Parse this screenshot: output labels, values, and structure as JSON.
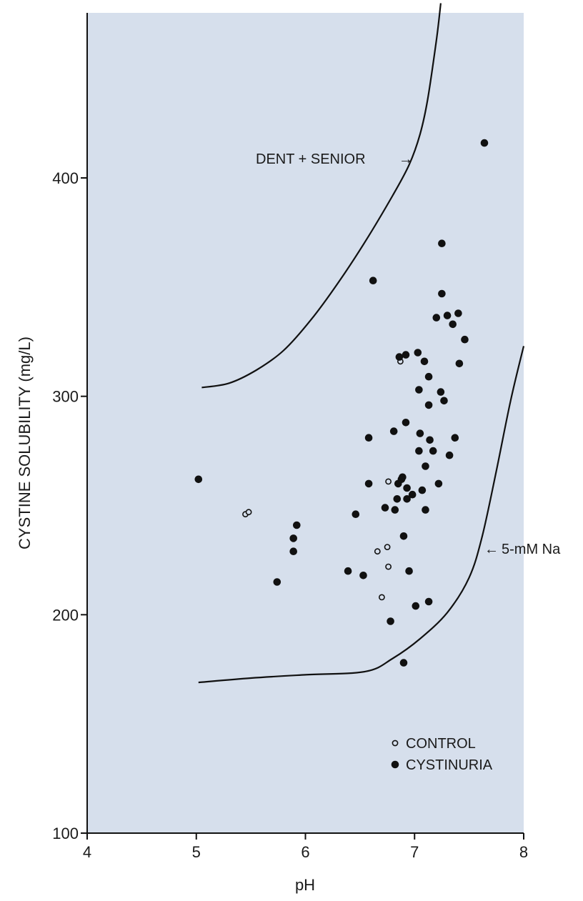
{
  "chart_data": {
    "type": "scatter",
    "title": "",
    "xlabel": "pH",
    "ylabel": "CYSTINE SOLUBILITY (mg/L)",
    "xlim": [
      4,
      8
    ],
    "ylim": [
      100,
      480
    ],
    "x_ticks": [
      4,
      5,
      6,
      7,
      8
    ],
    "y_ticks": [
      100,
      200,
      300,
      400
    ],
    "x_tick_labels": [
      "4",
      "5",
      "6",
      "7",
      "8"
    ],
    "y_tick_labels": [
      "100",
      "200",
      "300",
      "400"
    ],
    "grid": false,
    "plot_background": "#d6dfec",
    "legend": {
      "placement": "bottom-right",
      "entries": [
        {
          "label": "CONTROL",
          "marker": "open-circle"
        },
        {
          "label": "CYSTINURIA",
          "marker": "filled-circle"
        }
      ]
    },
    "curves": [
      {
        "label": "DENT + SENIOR",
        "points": [
          [
            5.05,
            304
          ],
          [
            5.3,
            306
          ],
          [
            5.55,
            312
          ],
          [
            5.8,
            321
          ],
          [
            6.05,
            335
          ],
          [
            6.3,
            352
          ],
          [
            6.55,
            371
          ],
          [
            6.8,
            392
          ],
          [
            6.95,
            406
          ],
          [
            7.05,
            420
          ],
          [
            7.12,
            436
          ],
          [
            7.2,
            463
          ],
          [
            7.24,
            480
          ]
        ]
      },
      {
        "label": "5-mM Na",
        "points": [
          [
            5.02,
            169
          ],
          [
            5.5,
            171
          ],
          [
            6.0,
            172.5
          ],
          [
            6.55,
            174
          ],
          [
            6.8,
            180
          ],
          [
            7.05,
            189
          ],
          [
            7.3,
            201
          ],
          [
            7.5,
            217
          ],
          [
            7.62,
            236
          ],
          [
            7.75,
            266
          ],
          [
            7.88,
            298
          ],
          [
            8.0,
            323
          ]
        ]
      }
    ],
    "series": [
      {
        "name": "CONTROL",
        "marker": "open",
        "points": [
          [
            6.87,
            316
          ],
          [
            5.45,
            246
          ],
          [
            5.48,
            247
          ],
          [
            6.76,
            261
          ],
          [
            6.66,
            229
          ],
          [
            6.75,
            231
          ],
          [
            6.76,
            222
          ],
          [
            6.7,
            208
          ]
        ]
      },
      {
        "name": "CYSTINURIA",
        "marker": "filled",
        "points": [
          [
            5.02,
            262
          ],
          [
            5.74,
            215
          ],
          [
            5.89,
            229
          ],
          [
            5.89,
            235
          ],
          [
            5.92,
            241
          ],
          [
            6.39,
            220
          ],
          [
            6.46,
            246
          ],
          [
            6.53,
            218
          ],
          [
            6.58,
            281
          ],
          [
            6.58,
            260
          ],
          [
            6.62,
            353
          ],
          [
            6.73,
            249
          ],
          [
            6.78,
            197
          ],
          [
            6.81,
            284
          ],
          [
            6.82,
            248
          ],
          [
            6.84,
            253
          ],
          [
            6.85,
            260
          ],
          [
            6.86,
            318
          ],
          [
            6.88,
            262
          ],
          [
            6.89,
            263
          ],
          [
            6.9,
            236
          ],
          [
            6.9,
            178
          ],
          [
            6.92,
            319
          ],
          [
            6.92,
            288
          ],
          [
            6.93,
            253
          ],
          [
            6.93,
            258
          ],
          [
            6.95,
            220
          ],
          [
            6.98,
            255
          ],
          [
            7.01,
            204
          ],
          [
            7.03,
            320
          ],
          [
            7.04,
            303
          ],
          [
            7.04,
            275
          ],
          [
            7.05,
            283
          ],
          [
            7.07,
            257
          ],
          [
            7.09,
            316
          ],
          [
            7.1,
            248
          ],
          [
            7.1,
            268
          ],
          [
            7.13,
            206
          ],
          [
            7.13,
            309
          ],
          [
            7.13,
            296
          ],
          [
            7.14,
            280
          ],
          [
            7.17,
            275
          ],
          [
            7.2,
            336
          ],
          [
            7.22,
            260
          ],
          [
            7.24,
            302
          ],
          [
            7.25,
            370
          ],
          [
            7.25,
            347
          ],
          [
            7.27,
            298
          ],
          [
            7.3,
            337
          ],
          [
            7.32,
            273
          ],
          [
            7.35,
            333
          ],
          [
            7.37,
            281
          ],
          [
            7.4,
            338
          ],
          [
            7.41,
            315
          ],
          [
            7.46,
            326
          ],
          [
            7.64,
            416
          ]
        ]
      }
    ],
    "annotations": [
      {
        "text": "DENT + SENIOR",
        "arrow": "→"
      },
      {
        "text": "5-mM Na",
        "arrow": "←"
      }
    ]
  }
}
